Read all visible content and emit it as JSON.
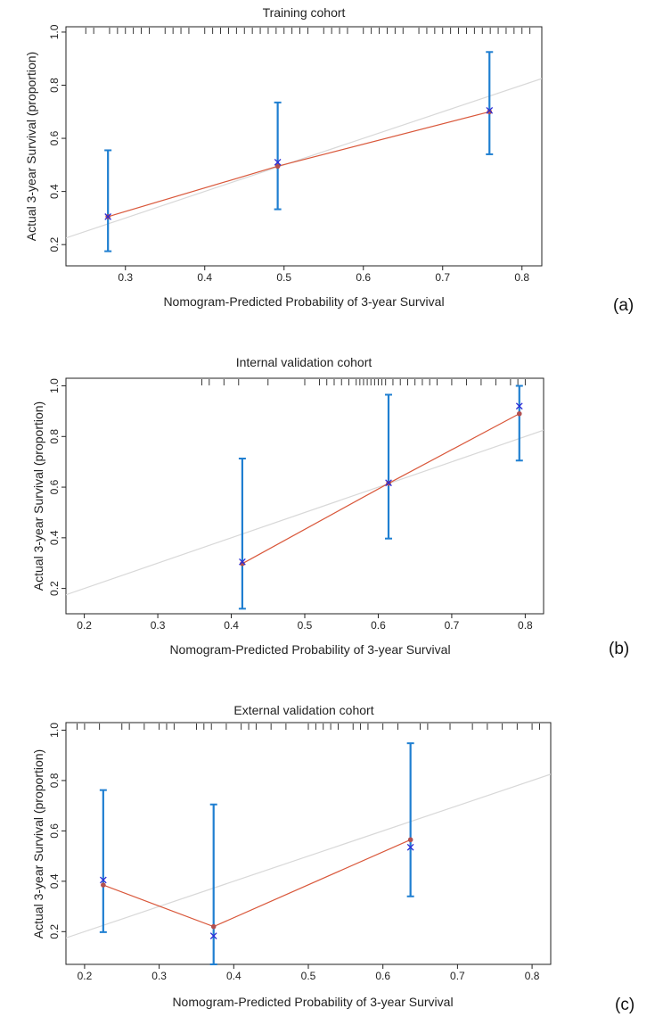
{
  "figure": {
    "panel_labels": [
      "(a)",
      "(b)",
      "(c)"
    ]
  },
  "colors": {
    "errorbar": "#1f7fd1",
    "fitted_line": "#d9573a",
    "fitted_point": "#b25050",
    "observed_marker": "#2b2bd6",
    "reference_line": "#d8d8d8",
    "axis": "#222222"
  },
  "chart_data": [
    {
      "type": "scatter",
      "title": "Training cohort",
      "xlabel": "Nomogram-Predicted Probability of 3-year Survival",
      "ylabel": "Actual 3-year Survival (proportion)",
      "xlim": [
        0.225,
        0.825
      ],
      "ylim": [
        0.12,
        1.02
      ],
      "xticks": [
        0.3,
        0.4,
        0.5,
        0.6,
        0.7,
        0.8
      ],
      "yticks": [
        0.2,
        0.4,
        0.6,
        0.8,
        1.0
      ],
      "xtick_labels": [
        "0.3",
        "0.4",
        "0.5",
        "0.6",
        "0.7",
        "0.8"
      ],
      "ytick_labels": [
        "0.2",
        "0.4",
        "0.6",
        "0.8",
        "1.0"
      ],
      "reference_line": "ideal (y = x)",
      "points": [
        {
          "x": 0.278,
          "y": 0.305,
          "observed": 0.305,
          "lower": 0.175,
          "upper": 0.555
        },
        {
          "x": 0.492,
          "y": 0.495,
          "observed": 0.51,
          "lower": 0.333,
          "upper": 0.735
        },
        {
          "x": 0.759,
          "y": 0.7,
          "observed": 0.705,
          "lower": 0.54,
          "upper": 0.925
        }
      ],
      "rug": [
        0.25,
        0.26,
        0.28,
        0.29,
        0.3,
        0.31,
        0.32,
        0.33,
        0.35,
        0.36,
        0.37,
        0.38,
        0.4,
        0.41,
        0.42,
        0.43,
        0.44,
        0.45,
        0.46,
        0.47,
        0.48,
        0.49,
        0.5,
        0.51,
        0.52,
        0.53,
        0.55,
        0.56,
        0.57,
        0.58,
        0.6,
        0.61,
        0.62,
        0.63,
        0.64,
        0.65,
        0.67,
        0.68,
        0.69,
        0.7,
        0.71,
        0.72,
        0.73,
        0.74,
        0.75,
        0.76,
        0.77,
        0.78,
        0.79,
        0.8,
        0.81
      ]
    },
    {
      "type": "scatter",
      "title": "Internal validation cohort",
      "xlabel": "Nomogram-Predicted Probability of 3-year Survival",
      "ylabel": "Actual 3-year Survival (proportion)",
      "xlim": [
        0.175,
        0.825
      ],
      "ylim": [
        0.1,
        1.03
      ],
      "xticks": [
        0.2,
        0.3,
        0.4,
        0.5,
        0.6,
        0.7,
        0.8
      ],
      "yticks": [
        0.2,
        0.4,
        0.6,
        0.8,
        1.0
      ],
      "xtick_labels": [
        "0.2",
        "0.3",
        "0.4",
        "0.5",
        "0.6",
        "0.7",
        "0.8"
      ],
      "ytick_labels": [
        "0.2",
        "0.4",
        "0.6",
        "0.8",
        "1.0"
      ],
      "reference_line": "ideal (y = x)",
      "points": [
        {
          "x": 0.415,
          "y": 0.298,
          "observed": 0.305,
          "lower": 0.12,
          "upper": 0.713
        },
        {
          "x": 0.614,
          "y": 0.615,
          "observed": 0.617,
          "lower": 0.397,
          "upper": 0.965
        },
        {
          "x": 0.792,
          "y": 0.89,
          "observed": 0.92,
          "lower": 0.705,
          "upper": 1.0
        }
      ],
      "rug": [
        0.36,
        0.37,
        0.39,
        0.41,
        0.45,
        0.5,
        0.52,
        0.53,
        0.54,
        0.55,
        0.56,
        0.57,
        0.575,
        0.58,
        0.585,
        0.59,
        0.595,
        0.6,
        0.605,
        0.61,
        0.62,
        0.63,
        0.64,
        0.65,
        0.66,
        0.67,
        0.68,
        0.7,
        0.72,
        0.74,
        0.76,
        0.78,
        0.79,
        0.8
      ]
    },
    {
      "type": "scatter",
      "title": "External validation cohort",
      "xlabel": "Nomogram-Predicted Probability of 3-year Survival",
      "ylabel": "Actual 3-year Survival (proportion)",
      "xlim": [
        0.175,
        0.825
      ],
      "ylim": [
        0.07,
        1.03
      ],
      "xticks": [
        0.2,
        0.3,
        0.4,
        0.5,
        0.6,
        0.7,
        0.8
      ],
      "yticks": [
        0.2,
        0.4,
        0.6,
        0.8,
        1.0
      ],
      "xtick_labels": [
        "0.2",
        "0.3",
        "0.4",
        "0.5",
        "0.6",
        "0.7",
        "0.8"
      ],
      "ytick_labels": [
        "0.2",
        "0.4",
        "0.6",
        "0.8",
        "1.0"
      ],
      "reference_line": "ideal (y = x)",
      "points": [
        {
          "x": 0.225,
          "y": 0.385,
          "observed": 0.405,
          "lower": 0.198,
          "upper": 0.762
        },
        {
          "x": 0.373,
          "y": 0.22,
          "observed": 0.183,
          "lower": 0.07,
          "upper": 0.705
        },
        {
          "x": 0.637,
          "y": 0.565,
          "observed": 0.535,
          "lower": 0.34,
          "upper": 0.948
        }
      ],
      "rug": [
        0.19,
        0.2,
        0.22,
        0.25,
        0.26,
        0.28,
        0.3,
        0.31,
        0.32,
        0.35,
        0.36,
        0.37,
        0.39,
        0.41,
        0.42,
        0.43,
        0.45,
        0.47,
        0.5,
        0.51,
        0.52,
        0.53,
        0.54,
        0.56,
        0.57,
        0.58,
        0.6,
        0.62,
        0.65,
        0.66,
        0.69,
        0.72,
        0.74,
        0.76,
        0.78,
        0.8,
        0.81
      ]
    }
  ]
}
